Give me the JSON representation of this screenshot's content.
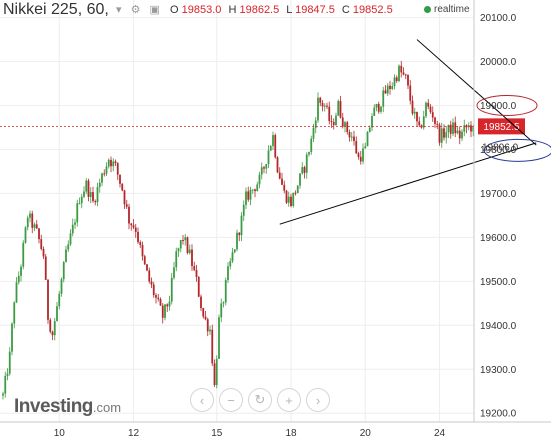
{
  "header": {
    "instrument": "Nikkei 225, 60,",
    "ohlc": [
      {
        "key": "O",
        "value": "19853.0"
      },
      {
        "key": "H",
        "value": "19862.5"
      },
      {
        "key": "L",
        "value": "19847.5"
      },
      {
        "key": "C",
        "value": "19852.5"
      }
    ],
    "realtime_label": "realtime",
    "icons": [
      "dropdown-icon",
      "settings-icon",
      "close-icon"
    ]
  },
  "logo": {
    "brand": "Investing",
    "suffix": ".com"
  },
  "toolbar": [
    "back-icon",
    "zoom-out-icon",
    "reset-icon",
    "zoom-in-icon",
    "forward-icon"
  ],
  "colors": {
    "up": "#3c9a44",
    "down": "#b3262a",
    "price_label_bg": "#d8242b",
    "grid": "#eeeeee",
    "trendline": "#000000",
    "red_ellipse": "#b3262a",
    "blue_ellipse": "#2a3a9a"
  },
  "chart_data": {
    "type": "candlestick",
    "x_ticks": [
      {
        "label": "10",
        "index": 25
      },
      {
        "label": "12",
        "index": 58
      },
      {
        "label": "15",
        "index": 95
      },
      {
        "label": "18",
        "index": 128
      },
      {
        "label": "20",
        "index": 161
      },
      {
        "label": "24",
        "index": 194
      }
    ],
    "y_ticks": [
      19200,
      19300,
      19400,
      19500,
      19600,
      19700,
      19800,
      19900,
      20000,
      20100
    ],
    "y_tick_labels": [
      "19200.0",
      "19300.0",
      "19400.0",
      "19500.0",
      "19600.0",
      "19700.0",
      "19800.0",
      "19900.0",
      "20000.0",
      "20100.0"
    ],
    "ylim": [
      19180,
      20140
    ],
    "last_price": 19852.5,
    "last_price_label": "19852.5",
    "blue_ellipse_label": "19806.0",
    "anchors": [
      [
        0,
        19240
      ],
      [
        3,
        19330
      ],
      [
        5,
        19460
      ],
      [
        8,
        19540
      ],
      [
        11,
        19650
      ],
      [
        15,
        19610
      ],
      [
        18,
        19560
      ],
      [
        20,
        19420
      ],
      [
        22,
        19380
      ],
      [
        25,
        19470
      ],
      [
        28,
        19560
      ],
      [
        31,
        19620
      ],
      [
        34,
        19690
      ],
      [
        37,
        19720
      ],
      [
        40,
        19680
      ],
      [
        44,
        19740
      ],
      [
        47,
        19780
      ],
      [
        50,
        19760
      ],
      [
        53,
        19710
      ],
      [
        56,
        19640
      ],
      [
        59,
        19620
      ],
      [
        62,
        19550
      ],
      [
        65,
        19500
      ],
      [
        68,
        19460
      ],
      [
        71,
        19420
      ],
      [
        74,
        19460
      ],
      [
        77,
        19560
      ],
      [
        80,
        19600
      ],
      [
        83,
        19560
      ],
      [
        86,
        19500
      ],
      [
        89,
        19420
      ],
      [
        92,
        19390
      ],
      [
        94,
        19260
      ],
      [
        96,
        19410
      ],
      [
        98,
        19460
      ],
      [
        100,
        19520
      ],
      [
        103,
        19580
      ],
      [
        106,
        19640
      ],
      [
        108,
        19690
      ],
      [
        111,
        19710
      ],
      [
        114,
        19730
      ],
      [
        116,
        19760
      ],
      [
        118,
        19800
      ],
      [
        120,
        19830
      ],
      [
        122,
        19760
      ],
      [
        125,
        19700
      ],
      [
        128,
        19680
      ],
      [
        131,
        19720
      ],
      [
        134,
        19760
      ],
      [
        137,
        19820
      ],
      [
        140,
        19910
      ],
      [
        143,
        19900
      ],
      [
        146,
        19850
      ],
      [
        149,
        19900
      ],
      [
        152,
        19850
      ],
      [
        155,
        19830
      ],
      [
        158,
        19780
      ],
      [
        161,
        19800
      ],
      [
        164,
        19880
      ],
      [
        167,
        19900
      ],
      [
        170,
        19930
      ],
      [
        173,
        19950
      ],
      [
        176,
        19980
      ],
      [
        179,
        19960
      ],
      [
        182,
        19890
      ],
      [
        185,
        19840
      ],
      [
        188,
        19900
      ],
      [
        191,
        19880
      ],
      [
        194,
        19830
      ],
      [
        197,
        19840
      ],
      [
        200,
        19850
      ],
      [
        203,
        19830
      ],
      [
        206,
        19850
      ],
      [
        209,
        19852.5
      ]
    ],
    "resistance_line": {
      "from": [
        184,
        20050
      ],
      "to": [
        237,
        19810
      ]
    },
    "support_line": {
      "from": [
        123,
        19630
      ],
      "to": [
        237,
        19815
      ]
    },
    "red_ellipse_center": [
      224,
      19900
    ],
    "blue_ellipse_center": [
      229,
      19798
    ]
  }
}
